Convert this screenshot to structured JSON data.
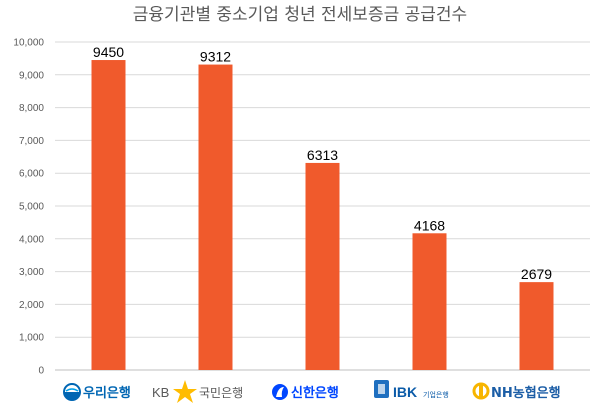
{
  "chart_data": {
    "type": "bar",
    "title": "금융기관별 중소기업 청년 전세보증금 공급건수",
    "xlabel": "",
    "ylabel": "",
    "ylim": [
      0,
      10000
    ],
    "yticks": [
      "0",
      "1,000",
      "2,000",
      "3,000",
      "4,000",
      "5,000",
      "6,000",
      "7,000",
      "8,000",
      "9,000",
      "10,000"
    ],
    "grid": true,
    "legend": "none",
    "bar_color": "#f05a2c",
    "categories": [
      "우리은행",
      "KB국민은행",
      "신한은행",
      "IBK기업은행",
      "NH농협은행"
    ],
    "values": [
      9450,
      9312,
      6313,
      4168,
      2679
    ],
    "data_labels": [
      "9450",
      "9312",
      "6313",
      "4168",
      "2679"
    ]
  },
  "banks": [
    {
      "name": "우리은행",
      "color": "#0066b3",
      "icon": "woori-logo-icon"
    },
    {
      "name_prefix": "KB",
      "name": "국민은행",
      "color": "#595959",
      "accent": "#ffbc00",
      "icon": "kb-star-icon"
    },
    {
      "name": "신한은행",
      "color": "#0046ff",
      "icon": "shinhan-logo-icon"
    },
    {
      "name": "IBK",
      "sub": "기업은행",
      "color": "#0b5ba8",
      "icon": "ibk-logo-icon"
    },
    {
      "name": "NH농협은행",
      "color": "#1b5da6",
      "accent": "#f7b500",
      "icon": "nh-logo-icon"
    }
  ]
}
